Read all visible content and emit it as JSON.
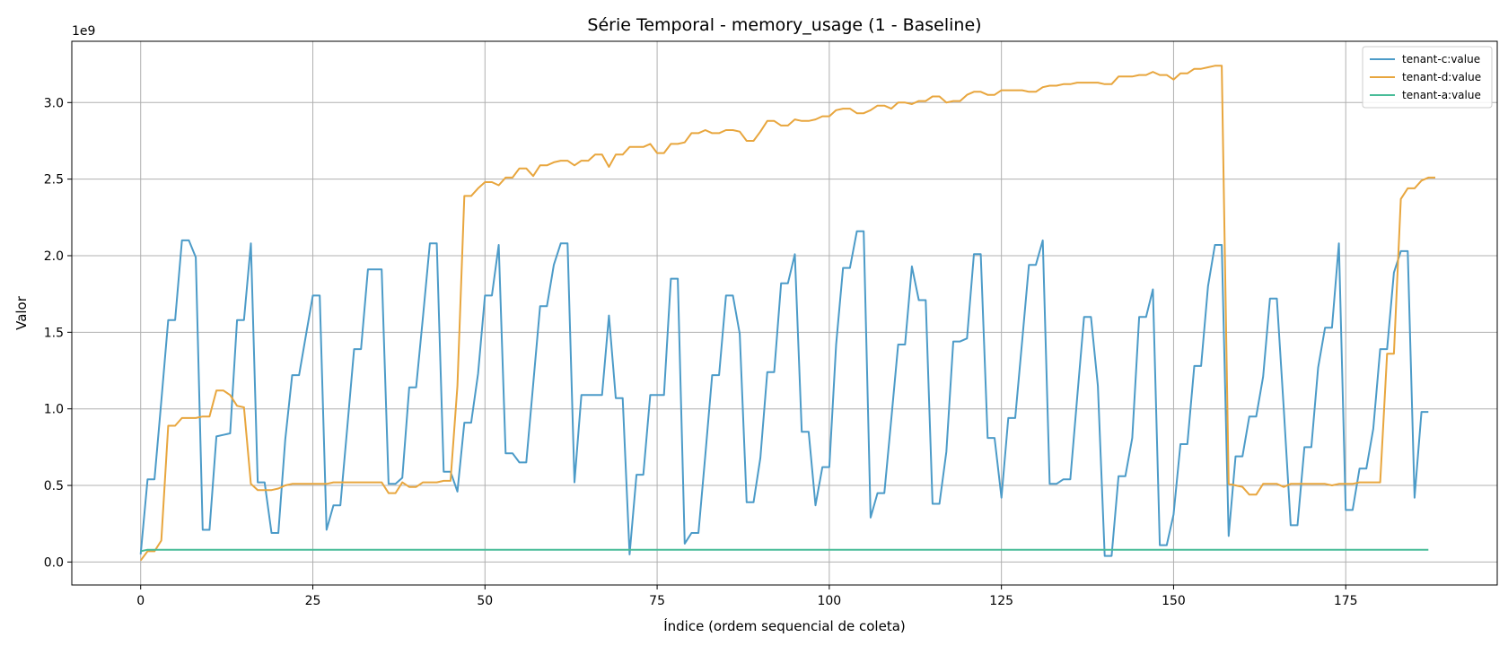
{
  "chart_data": {
    "type": "line",
    "title": "Série Temporal - memory_usage (1 - Baseline)",
    "xlabel": "Índice (ordem sequencial de coleta)",
    "ylabel": "Valor",
    "y_multiplier_label": "1e9",
    "xlim": [
      -10,
      197
    ],
    "ylim": [
      -0.15,
      3.4
    ],
    "x_ticks": [
      0,
      25,
      50,
      75,
      100,
      125,
      150,
      175
    ],
    "y_ticks": [
      0.0,
      0.5,
      1.0,
      1.5,
      2.0,
      2.5,
      3.0
    ],
    "x_tick_labels": [
      "0",
      "25",
      "50",
      "75",
      "100",
      "125",
      "150",
      "175"
    ],
    "y_tick_labels": [
      "0.0",
      "0.5",
      "1.0",
      "1.5",
      "2.0",
      "2.5",
      "3.0"
    ],
    "grid": true,
    "legend_position": "top-right",
    "series": [
      {
        "name": "tenant-c:value",
        "color": "#4c9bc8",
        "values": [
          0.05,
          0.54,
          0.54,
          1.05,
          1.58,
          1.58,
          2.1,
          2.1,
          1.99,
          0.21,
          0.21,
          0.82,
          0.83,
          0.84,
          1.58,
          1.58,
          2.08,
          0.52,
          0.52,
          0.19,
          0.19,
          0.8,
          1.22,
          1.22,
          1.48,
          1.74,
          1.74,
          0.21,
          0.37,
          0.37,
          0.88,
          1.39,
          1.39,
          1.91,
          1.91,
          1.91,
          0.51,
          0.51,
          0.55,
          1.14,
          1.14,
          1.6,
          2.08,
          2.08,
          0.59,
          0.59,
          0.46,
          0.91,
          0.91,
          1.23,
          1.74,
          1.74,
          2.07,
          0.71,
          0.71,
          0.65,
          0.65,
          1.16,
          1.67,
          1.67,
          1.94,
          2.08,
          2.08,
          0.52,
          1.09,
          1.09,
          1.09,
          1.09,
          1.61,
          1.07,
          1.07,
          0.05,
          0.57,
          0.57,
          1.09,
          1.09,
          1.09,
          1.85,
          1.85,
          0.12,
          0.19,
          0.19,
          0.7,
          1.22,
          1.22,
          1.74,
          1.74,
          1.49,
          0.39,
          0.39,
          0.68,
          1.24,
          1.24,
          1.82,
          1.82,
          2.01,
          0.85,
          0.85,
          0.37,
          0.62,
          0.62,
          1.42,
          1.92,
          1.92,
          2.16,
          2.16,
          0.29,
          0.45,
          0.45,
          0.93,
          1.42,
          1.42,
          1.93,
          1.71,
          1.71,
          0.38,
          0.38,
          0.72,
          1.44,
          1.44,
          1.46,
          2.01,
          2.01,
          0.81,
          0.81,
          0.42,
          0.94,
          0.94,
          1.44,
          1.94,
          1.94,
          2.1,
          0.51,
          0.51,
          0.54,
          0.54,
          1.07,
          1.6,
          1.6,
          1.15,
          0.04,
          0.04,
          0.56,
          0.56,
          0.81,
          1.6,
          1.6,
          1.78,
          0.11,
          0.11,
          0.31,
          0.77,
          0.77,
          1.28,
          1.28,
          1.8,
          2.07,
          2.07,
          0.17,
          0.69,
          0.69,
          0.95,
          0.95,
          1.21,
          1.72,
          1.72,
          1.0,
          0.24,
          0.24,
          0.75,
          0.75,
          1.27,
          1.53,
          1.53,
          2.08,
          0.34,
          0.34,
          0.61,
          0.61,
          0.87,
          1.39,
          1.39,
          1.89,
          2.03,
          2.03,
          0.42,
          0.98,
          0.98
        ]
      },
      {
        "name": "tenant-d:value",
        "color": "#e8a63e",
        "values": [
          0.01,
          0.07,
          0.07,
          0.14,
          0.89,
          0.89,
          0.94,
          0.94,
          0.94,
          0.95,
          0.95,
          1.12,
          1.12,
          1.09,
          1.02,
          1.01,
          0.51,
          0.47,
          0.47,
          0.47,
          0.48,
          0.5,
          0.51,
          0.51,
          0.51,
          0.51,
          0.51,
          0.51,
          0.52,
          0.52,
          0.52,
          0.52,
          0.52,
          0.52,
          0.52,
          0.52,
          0.45,
          0.45,
          0.52,
          0.49,
          0.49,
          0.52,
          0.52,
          0.52,
          0.53,
          0.53,
          1.15,
          2.39,
          2.39,
          2.44,
          2.48,
          2.48,
          2.46,
          2.51,
          2.51,
          2.57,
          2.57,
          2.52,
          2.59,
          2.59,
          2.61,
          2.62,
          2.62,
          2.59,
          2.62,
          2.62,
          2.66,
          2.66,
          2.58,
          2.66,
          2.66,
          2.71,
          2.71,
          2.71,
          2.73,
          2.67,
          2.67,
          2.73,
          2.73,
          2.74,
          2.8,
          2.8,
          2.82,
          2.8,
          2.8,
          2.82,
          2.82,
          2.81,
          2.75,
          2.75,
          2.81,
          2.88,
          2.88,
          2.85,
          2.85,
          2.89,
          2.88,
          2.88,
          2.89,
          2.91,
          2.91,
          2.95,
          2.96,
          2.96,
          2.93,
          2.93,
          2.95,
          2.98,
          2.98,
          2.96,
          3.0,
          3.0,
          2.99,
          3.01,
          3.01,
          3.04,
          3.04,
          3.0,
          3.01,
          3.01,
          3.05,
          3.07,
          3.07,
          3.05,
          3.05,
          3.08,
          3.08,
          3.08,
          3.08,
          3.07,
          3.07,
          3.1,
          3.11,
          3.11,
          3.12,
          3.12,
          3.13,
          3.13,
          3.13,
          3.13,
          3.12,
          3.12,
          3.17,
          3.17,
          3.17,
          3.18,
          3.18,
          3.2,
          3.18,
          3.18,
          3.15,
          3.19,
          3.19,
          3.22,
          3.22,
          3.23,
          3.24,
          3.24,
          0.51,
          0.5,
          0.49,
          0.44,
          0.44,
          0.51,
          0.51,
          0.51,
          0.49,
          0.51,
          0.51,
          0.51,
          0.51,
          0.51,
          0.51,
          0.5,
          0.51,
          0.51,
          0.51,
          0.52,
          0.52,
          0.52,
          0.52,
          1.36,
          1.36,
          2.37,
          2.44,
          2.44,
          2.49,
          2.51,
          2.51
        ]
      },
      {
        "name": "tenant-a:value",
        "color": "#48bc98",
        "values": [
          0.07,
          0.08,
          0.08,
          0.08,
          0.08,
          0.08,
          0.08,
          0.08,
          0.08,
          0.08,
          0.08,
          0.08,
          0.08,
          0.08,
          0.08,
          0.08,
          0.08,
          0.08,
          0.08,
          0.08,
          0.08,
          0.08,
          0.08,
          0.08,
          0.08,
          0.08,
          0.08,
          0.08,
          0.08,
          0.08,
          0.08,
          0.08,
          0.08,
          0.08,
          0.08,
          0.08,
          0.08,
          0.08,
          0.08,
          0.08,
          0.08,
          0.08,
          0.08,
          0.08,
          0.08,
          0.08,
          0.08,
          0.08,
          0.08,
          0.08,
          0.08,
          0.08,
          0.08,
          0.08,
          0.08,
          0.08,
          0.08,
          0.08,
          0.08,
          0.08,
          0.08,
          0.08,
          0.08,
          0.08,
          0.08,
          0.08,
          0.08,
          0.08,
          0.08,
          0.08,
          0.08,
          0.08,
          0.08,
          0.08,
          0.08,
          0.08,
          0.08,
          0.08,
          0.08,
          0.08,
          0.08,
          0.08,
          0.08,
          0.08,
          0.08,
          0.08,
          0.08,
          0.08,
          0.08,
          0.08,
          0.08,
          0.08,
          0.08,
          0.08,
          0.08,
          0.08,
          0.08,
          0.08,
          0.08,
          0.08,
          0.08,
          0.08,
          0.08,
          0.08,
          0.08,
          0.08,
          0.08,
          0.08,
          0.08,
          0.08,
          0.08,
          0.08,
          0.08,
          0.08,
          0.08,
          0.08,
          0.08,
          0.08,
          0.08,
          0.08,
          0.08,
          0.08,
          0.08,
          0.08,
          0.08,
          0.08,
          0.08,
          0.08,
          0.08,
          0.08,
          0.08,
          0.08,
          0.08,
          0.08,
          0.08,
          0.08,
          0.08,
          0.08,
          0.08,
          0.08,
          0.08,
          0.08,
          0.08,
          0.08,
          0.08,
          0.08,
          0.08,
          0.08,
          0.08,
          0.08,
          0.08,
          0.08,
          0.08,
          0.08,
          0.08,
          0.08,
          0.08,
          0.08,
          0.08,
          0.08,
          0.08,
          0.08,
          0.08,
          0.08,
          0.08,
          0.08,
          0.08,
          0.08,
          0.08,
          0.08,
          0.08,
          0.08,
          0.08,
          0.08,
          0.08,
          0.08,
          0.08,
          0.08,
          0.08,
          0.08,
          0.08,
          0.08,
          0.08,
          0.08,
          0.08,
          0.08,
          0.08,
          0.08
        ]
      }
    ]
  }
}
